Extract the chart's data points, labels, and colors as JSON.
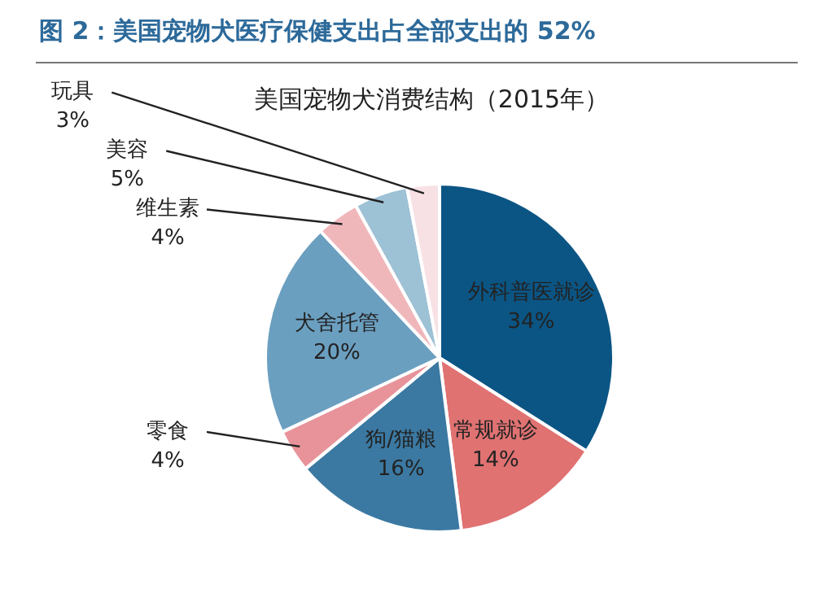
{
  "chart_data": {
    "type": "pie",
    "title": "图 2：美国宠物犬医疗保健支出占全部支出的 52%",
    "subtitle": "美国宠物犬消费结构（2015年）",
    "categories": [
      "外科普医就诊",
      "常规就诊",
      "狗/猫粮",
      "零食",
      "犬舍托管",
      "维生素",
      "美容",
      "玩具"
    ],
    "values": [
      34,
      14,
      16,
      4,
      20,
      4,
      5,
      3
    ],
    "value_labels": [
      "34%",
      "14%",
      "16%",
      "4%",
      "20%",
      "4%",
      "5%",
      "3%"
    ],
    "colors": [
      "#0b5584",
      "#e07272",
      "#3b79a2",
      "#e8939a",
      "#6b9fc0",
      "#f0b7bb",
      "#9dc1d5",
      "#f8e1e5"
    ],
    "legend": false
  }
}
